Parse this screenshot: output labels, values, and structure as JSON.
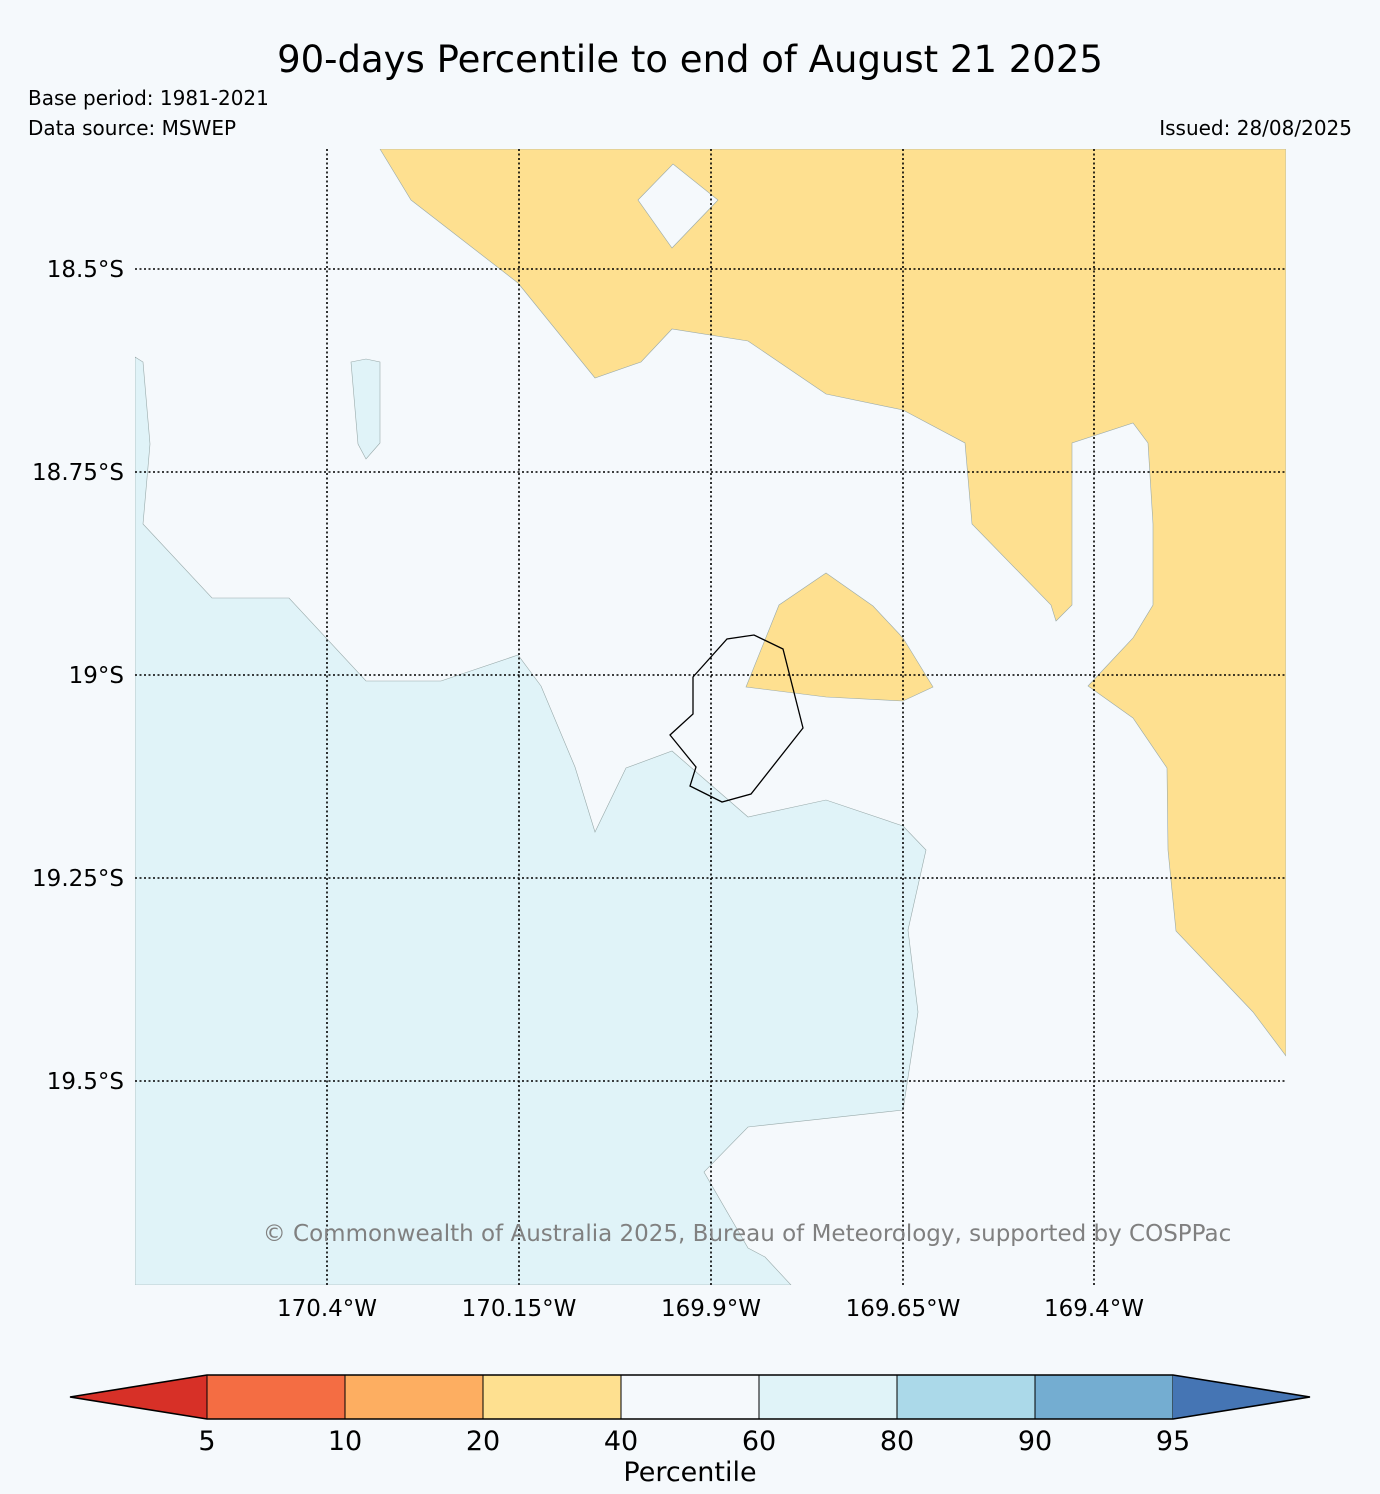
{
  "header": {
    "title": "90-days Percentile to end of August 21 2025",
    "base_period": "Base period: 1981-2021",
    "data_source": "Data source: MSWEP",
    "issued": "Issued: 28/08/2025"
  },
  "map": {
    "lat_labels": [
      "18.5°S",
      "18.75°S",
      "19°S",
      "19.25°S",
      "19.5°S"
    ],
    "lon_labels": [
      "170.4°W",
      "170.15°W",
      "169.9°W",
      "169.65°W",
      "169.4°W"
    ],
    "copyright": "© Commonwealth of Australia 2025, Bureau of Meteorology, supported by COSPPac",
    "legend_colors": {
      "20-40": "#fee090",
      "40-60": "#f5f9fc",
      "60-80": "#e0f3f8"
    }
  },
  "colorbar": {
    "label": "Percentile",
    "ticks": [
      "5",
      "10",
      "20",
      "40",
      "60",
      "80",
      "90",
      "95"
    ],
    "colors": [
      "#d73027",
      "#f46d43",
      "#fdae61",
      "#fee090",
      "#f5f9fc",
      "#e0f3f8",
      "#abd9e9",
      "#74add1",
      "#4575b4"
    ]
  }
}
